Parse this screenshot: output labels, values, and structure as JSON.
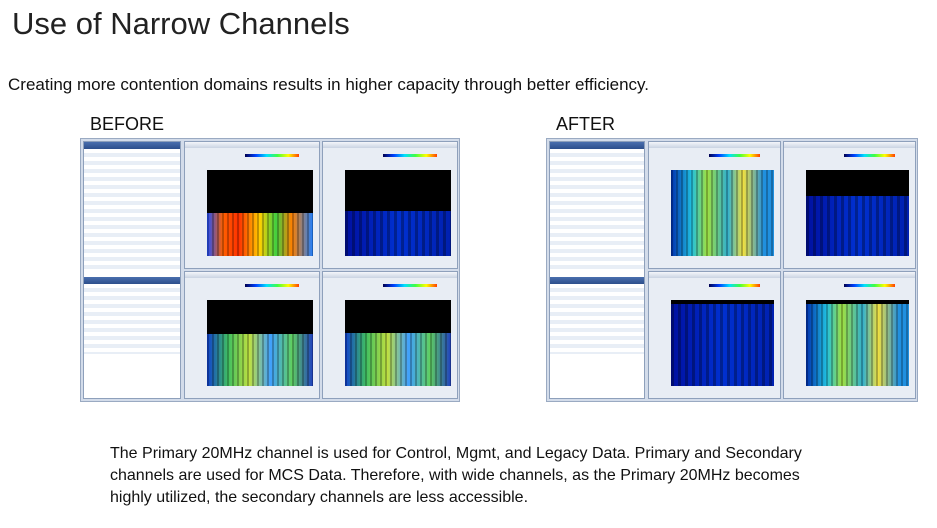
{
  "title": "Use of Narrow Channels",
  "subtitle": "Creating more contention domains results in higher capacity through better efficiency.",
  "screenshots": [
    {
      "label": "BEFORE"
    },
    {
      "label": "AFTER"
    }
  ],
  "body": {
    "lines": [
      "The Primary 20MHz channel is used for Control, Mgmt, and Legacy Data. Primary and Secondary",
      "channels are used for MCS Data. Therefore, with wide channels, as the Primary 20MHz becomes",
      "highly utilized, the secondary channels are less accessible."
    ]
  }
}
